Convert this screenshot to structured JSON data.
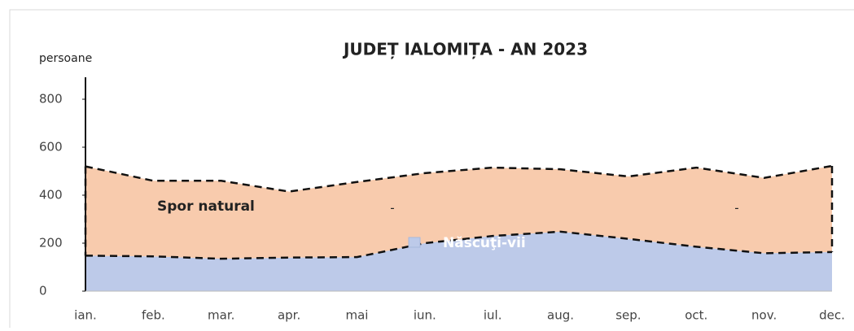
{
  "chart_data": {
    "type": "stacked-area",
    "title": "JUDEȚ IALOMIȚA - AN 2023",
    "y_label": "persoane",
    "categories": [
      "ian.",
      "feb.",
      "mar.",
      "apr.",
      "mai",
      "iun.",
      "iul.",
      "aug.",
      "sep.",
      "oct.",
      "nov.",
      "dec."
    ],
    "series": [
      {
        "name": "Născuţi-vii",
        "color": "#bdcae9",
        "values": [
          148,
          145,
          135,
          140,
          142,
          200,
          230,
          248,
          218,
          185,
          158,
          163
        ]
      },
      {
        "name": "Spor natural",
        "color": "#f8cbad",
        "values": [
          372,
          315,
          325,
          275,
          313,
          292,
          285,
          260,
          260,
          330,
          314,
          359
        ]
      }
    ],
    "annotations": [
      "-",
      "-"
    ],
    "ylim": [
      0,
      800
    ],
    "yticks": [
      0,
      200,
      400,
      600,
      800
    ]
  }
}
